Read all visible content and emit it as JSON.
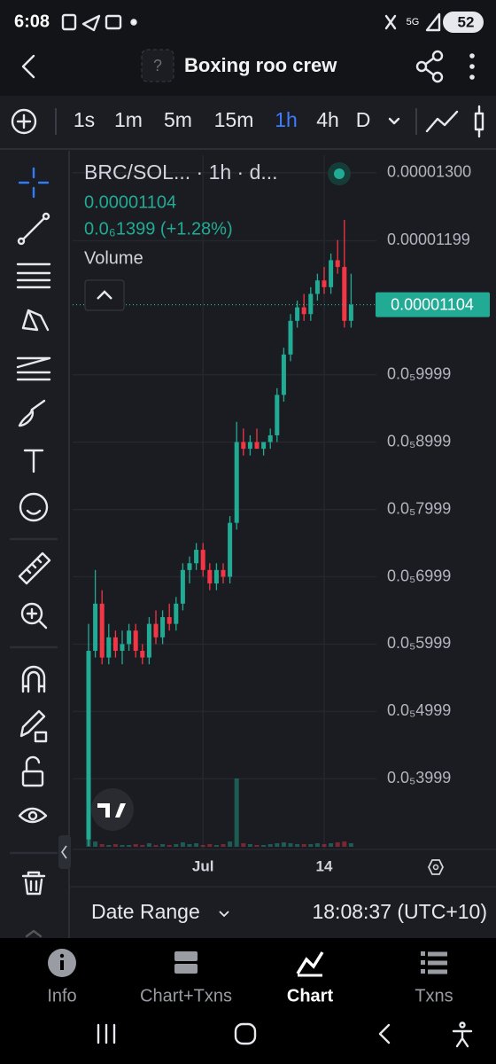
{
  "status_bar": {
    "time": "6:08",
    "battery": "52"
  },
  "header": {
    "token_icon": "?",
    "title": "Boxing roo crew"
  },
  "toolbar": {
    "intervals": [
      "1s",
      "1m",
      "5m",
      "15m",
      "1h",
      "4h",
      "D"
    ],
    "active": 4
  },
  "chart_data": {
    "type": "candlestick",
    "title": "BRC/SOL... · 1h · d...",
    "change": "0.0₆1399 (+1.28%)",
    "volume_label": "Volume",
    "price_line": {
      "value": 1.104e-05,
      "label": "0.00001104"
    },
    "up_color": "#22ab94",
    "down_color": "#f23645",
    "categories": [
      null,
      null,
      null,
      null,
      null,
      null,
      null,
      null,
      null,
      null,
      null,
      null,
      null,
      null,
      null,
      null,
      null,
      "Jul",
      null,
      null,
      null,
      null,
      null,
      null,
      null,
      null,
      null,
      null,
      null,
      null,
      null,
      null,
      null,
      null,
      null,
      "14",
      null,
      null,
      null,
      null
    ],
    "open": [
      3.1e-06,
      5.9e-06,
      6.6e-06,
      5.8e-06,
      6.1e-06,
      5.9e-06,
      6e-06,
      6.2e-06,
      5.9e-06,
      5.8e-06,
      6.3e-06,
      6.1e-06,
      6.4e-06,
      6.3e-06,
      6.6e-06,
      7.1e-06,
      7.2e-06,
      7.4e-06,
      7.1e-06,
      6.9e-06,
      7.1e-06,
      7e-06,
      7.8e-06,
      9e-06,
      8.9e-06,
      9e-06,
      8.9e-06,
      9e-06,
      9.1e-06,
      9.7e-06,
      1.03e-05,
      1.08e-05,
      1.1e-05,
      1.09e-05,
      1.12e-05,
      1.14e-05,
      1.13e-05,
      1.17e-05,
      1.16e-05,
      1.08e-05
    ],
    "high": [
      6.3e-06,
      7.1e-06,
      6.8e-06,
      6.3e-06,
      6.2e-06,
      6.2e-06,
      6.3e-06,
      6.3e-06,
      6e-06,
      6.4e-06,
      6.5e-06,
      6.5e-06,
      6.6e-06,
      6.7e-06,
      7.2e-06,
      7.3e-06,
      7.5e-06,
      7.5e-06,
      7.2e-06,
      7.2e-06,
      7.2e-06,
      7.9e-06,
      9.3e-06,
      9.2e-06,
      9.1e-06,
      9.2e-06,
      9e-06,
      9.2e-06,
      9.8e-06,
      1.04e-05,
      1.09e-05,
      1.11e-05,
      1.12e-05,
      1.13e-05,
      1.15e-05,
      1.16e-05,
      1.18e-05,
      1.2e-05,
      1.23e-05,
      1.15e-05
    ],
    "low": [
      3e-06,
      5.8e-06,
      5.7e-06,
      5.7e-06,
      5.8e-06,
      5.7e-06,
      5.9e-06,
      5.8e-06,
      5.7e-06,
      5.7e-06,
      6e-06,
      6e-06,
      6.2e-06,
      6.2e-06,
      6.5e-06,
      6.9e-06,
      7.1e-06,
      7e-06,
      6.8e-06,
      6.8e-06,
      6.9e-06,
      6.9e-06,
      7.7e-06,
      8.8e-06,
      8.8e-06,
      8.9e-06,
      8.8e-06,
      8.9e-06,
      9e-06,
      9.6e-06,
      1.02e-05,
      1.07e-05,
      1.08e-05,
      1.08e-05,
      1.11e-05,
      1.12e-05,
      1.12e-05,
      1.15e-05,
      1.07e-05,
      1.07e-05
    ],
    "close": [
      5.9e-06,
      6.6e-06,
      5.8e-06,
      6.1e-06,
      5.9e-06,
      6e-06,
      6.2e-06,
      5.9e-06,
      5.8e-06,
      6.3e-06,
      6.1e-06,
      6.4e-06,
      6.3e-06,
      6.6e-06,
      7.1e-06,
      7.2e-06,
      7.4e-06,
      7.1e-06,
      6.9e-06,
      7.1e-06,
      7e-06,
      7.8e-06,
      9e-06,
      8.9e-06,
      9e-06,
      8.9e-06,
      9e-06,
      9.1e-06,
      9.7e-06,
      1.03e-05,
      1.08e-05,
      1.1e-05,
      1.09e-05,
      1.12e-05,
      1.14e-05,
      1.13e-05,
      1.17e-05,
      1.16e-05,
      1.08e-05,
      1.104e-05
    ],
    "volume": [
      22,
      6,
      3,
      2,
      3,
      2,
      2,
      3,
      2,
      4,
      2,
      3,
      2,
      3,
      5,
      3,
      4,
      2,
      3,
      2,
      3,
      6,
      78,
      4,
      3,
      2,
      2,
      3,
      4,
      5,
      4,
      3,
      3,
      3,
      4,
      3,
      4,
      5,
      6,
      4
    ],
    "ylim": [
      2.99e-06,
      1.326e-05
    ],
    "yticks": [
      {
        "value": 1.3e-05,
        "label": "0.00001300"
      },
      {
        "value": 1.199e-05,
        "label": "0.00001199"
      },
      {
        "value": 9.999e-06,
        "label": "0.0₅9999"
      },
      {
        "value": 8.999e-06,
        "label": "0.0₅8999"
      },
      {
        "value": 7.999e-06,
        "label": "0.0₅7999"
      },
      {
        "value": 6.999e-06,
        "label": "0.0₅6999"
      },
      {
        "value": 5.999e-06,
        "label": "0.0₅5999"
      },
      {
        "value": 4.999e-06,
        "label": "0.0₅4999"
      },
      {
        "value": 3.999e-06,
        "label": "0.0₅3999"
      }
    ],
    "grid": true
  },
  "footer": {
    "date_range": "Date Range",
    "clock": "18:08:37 (UTC+10)"
  },
  "bottom_nav": {
    "items": [
      "Info",
      "Chart+Txns",
      "Chart",
      "Txns"
    ],
    "active": 2
  }
}
